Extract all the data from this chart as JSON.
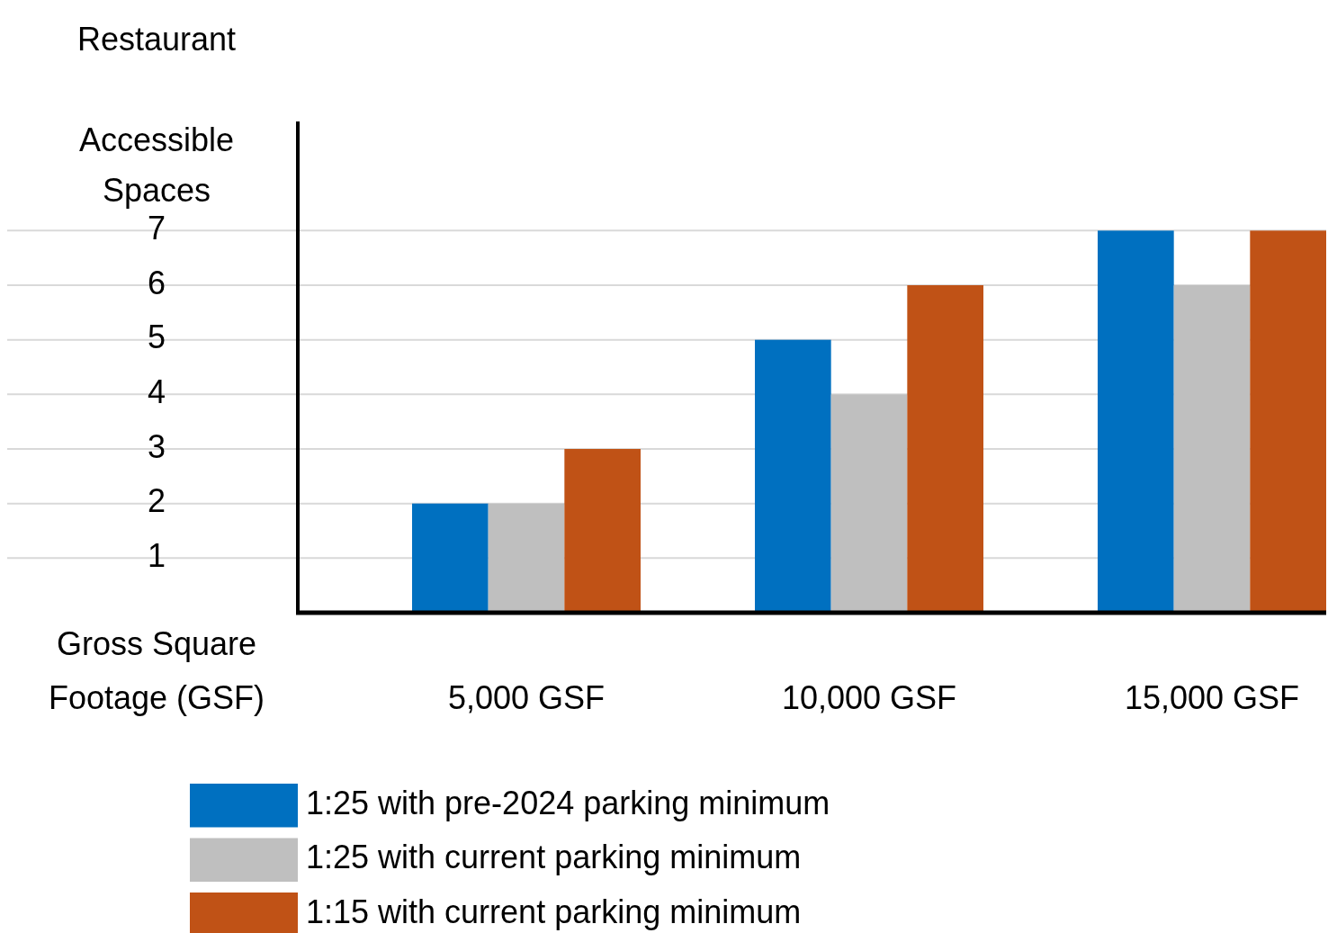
{
  "chart_data": {
    "type": "bar",
    "title": "Restaurant",
    "ylabel": "Accessible Spaces",
    "xlabel": "Gross Square Footage (GSF)",
    "categories": [
      "5,000 GSF",
      "10,000 GSF",
      "15,000 GSF"
    ],
    "series": [
      {
        "name": "1:25 with pre-2024 parking minimum",
        "color": "#0070c0",
        "values": [
          2,
          5,
          7
        ]
      },
      {
        "name": "1:25 with current parking minimum",
        "color": "#bfbfbf",
        "values": [
          2,
          4,
          6
        ]
      },
      {
        "name": "1:15 with current parking minimum",
        "color": "#c05216",
        "values": [
          3,
          6,
          7
        ]
      }
    ],
    "ylim": [
      0,
      9
    ],
    "yticks": [
      1,
      2,
      3,
      4,
      5,
      6,
      7
    ],
    "grid": "y",
    "legend": "bottom"
  }
}
